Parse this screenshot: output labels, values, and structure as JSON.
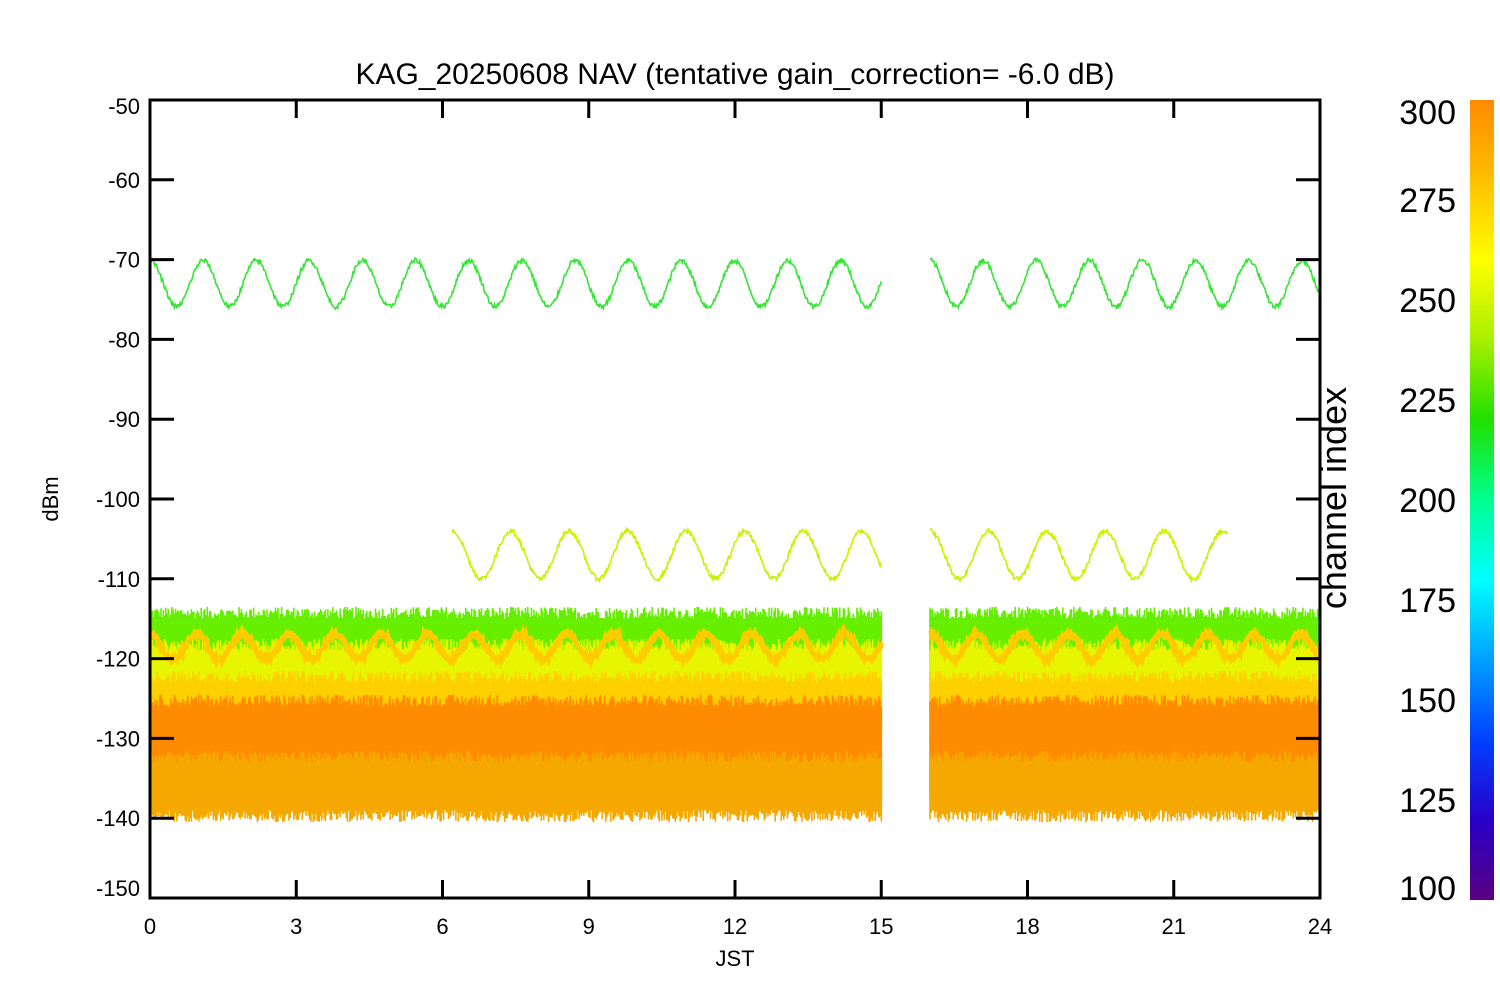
{
  "chart_data": {
    "type": "line",
    "title": "KAG_20250608 NAV (tentative gain_correction= -6.0 dB)",
    "xlabel": "JST",
    "ylabel": "dBm",
    "xlim": [
      0,
      24
    ],
    "ylim": [
      -150,
      -50
    ],
    "x_ticks": [
      0,
      3,
      6,
      9,
      12,
      15,
      18,
      21,
      24
    ],
    "y_ticks": [
      -50,
      -60,
      -70,
      -80,
      -90,
      -100,
      -110,
      -120,
      -130,
      -140,
      -150
    ],
    "data_gap": [
      15,
      16
    ],
    "grid": false,
    "colorbar": {
      "title": "channel index",
      "range": [
        100,
        300
      ],
      "ticks": [
        300,
        275,
        250,
        225,
        200,
        175,
        150,
        125,
        100
      ],
      "colors": [
        "#5a0080",
        "#2800c8",
        "#0040ff",
        "#00a0ff",
        "#00ffff",
        "#00ff90",
        "#20e000",
        "#a8f000",
        "#ffff00",
        "#ffc000",
        "#ff8a00"
      ]
    },
    "series": [
      {
        "channel": 240,
        "color": "#33e633",
        "kind": "sine",
        "center": -73,
        "amplitude": 2.9,
        "period_h": 1.09,
        "x_range": [
          0,
          24
        ]
      },
      {
        "channel": 268,
        "color": "#cdf000",
        "kind": "sine",
        "center": -107,
        "amplitude": 3.0,
        "period_h": 1.2,
        "x_range": [
          6.2,
          22.1
        ]
      },
      {
        "channel": 280,
        "color": "#ffcc00",
        "kind": "sine",
        "center": -118.5,
        "amplitude": 1.6,
        "period_h": 0.95,
        "x_range": [
          0,
          24
        ]
      },
      {
        "channel": 245,
        "color": "#66ee00",
        "kind": "noise_band",
        "y_range": [
          -121,
          -115
        ],
        "x_range": [
          0,
          24
        ]
      },
      {
        "channel": 262,
        "color": "#e8f400",
        "kind": "noise_band",
        "y_range": [
          -126,
          -119
        ],
        "x_range": [
          0,
          24
        ]
      },
      {
        "channel": 275,
        "color": "#ffd000",
        "kind": "noise_band",
        "y_range": [
          -129,
          -123
        ],
        "x_range": [
          0,
          24
        ]
      },
      {
        "channel": 292,
        "color": "#ff8c00",
        "kind": "noise_band",
        "y_range": [
          -137,
          -126
        ],
        "x_range": [
          0,
          24
        ]
      },
      {
        "channel": 285,
        "color": "#f5a800",
        "kind": "noise_band",
        "y_range": [
          -139,
          -133
        ],
        "x_range": [
          0,
          24
        ]
      }
    ]
  }
}
